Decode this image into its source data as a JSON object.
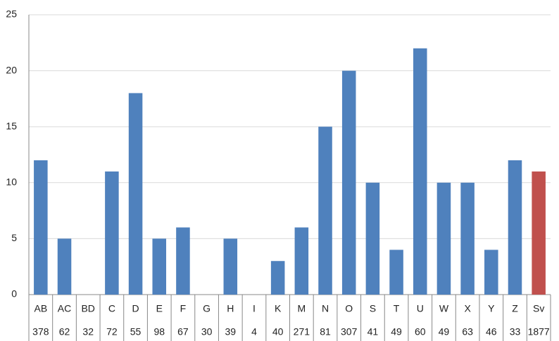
{
  "chart_data": {
    "type": "bar",
    "categories": [
      "AB",
      "AC",
      "BD",
      "C",
      "D",
      "E",
      "F",
      "G",
      "H",
      "I",
      "K",
      "M",
      "N",
      "O",
      "S",
      "T",
      "U",
      "W",
      "X",
      "Y",
      "Z",
      "Sv"
    ],
    "subcategories": [
      378,
      62,
      32,
      72,
      55,
      98,
      67,
      30,
      39,
      4,
      40,
      271,
      81,
      307,
      41,
      49,
      60,
      49,
      63,
      46,
      33,
      1877
    ],
    "values": [
      12,
      5,
      0,
      11,
      18,
      5,
      6,
      0,
      5,
      0,
      3,
      6,
      15,
      20,
      10,
      4,
      22,
      10,
      10,
      4,
      12,
      11
    ],
    "colors": [
      "#4f81bd",
      "#4f81bd",
      "#4f81bd",
      "#4f81bd",
      "#4f81bd",
      "#4f81bd",
      "#4f81bd",
      "#4f81bd",
      "#4f81bd",
      "#4f81bd",
      "#4f81bd",
      "#4f81bd",
      "#4f81bd",
      "#4f81bd",
      "#4f81bd",
      "#4f81bd",
      "#4f81bd",
      "#4f81bd",
      "#4f81bd",
      "#4f81bd",
      "#4f81bd",
      "#c0504d"
    ],
    "ylim": [
      0,
      25
    ],
    "yticks": [
      0,
      5,
      10,
      15,
      20,
      25
    ],
    "grid": true
  }
}
